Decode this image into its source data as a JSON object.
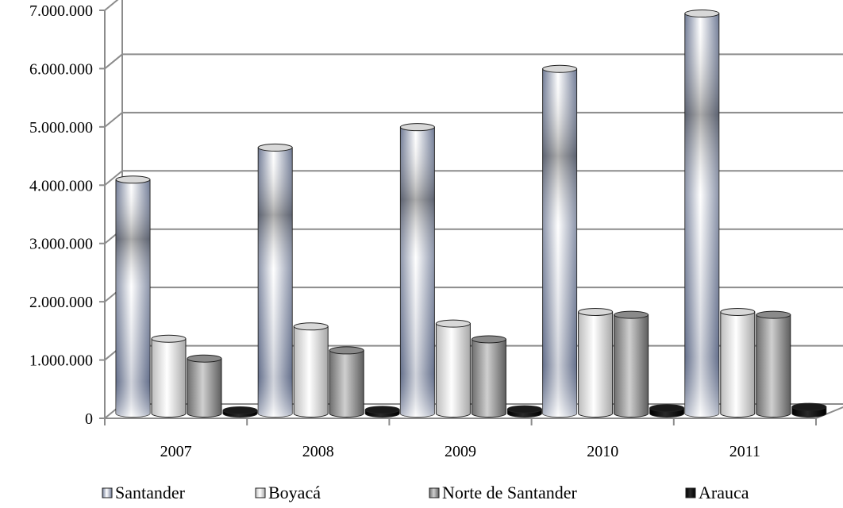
{
  "chart_data": {
    "type": "bar",
    "categories": [
      "2007",
      "2008",
      "2009",
      "2010",
      "2011"
    ],
    "series": [
      {
        "name": "Santander",
        "values": [
          4150000,
          4700000,
          5050000,
          6050000,
          7000000
        ],
        "color": "#9aa4bc"
      },
      {
        "name": "Boyacá",
        "values": [
          1420000,
          1630000,
          1680000,
          1880000,
          1880000
        ],
        "color": "#f2f2f2"
      },
      {
        "name": "Norte de Santander",
        "values": [
          1080000,
          1220000,
          1410000,
          1830000,
          1830000
        ],
        "color": "#9a9a9a"
      },
      {
        "name": "Arauca",
        "values": [
          190000,
          200000,
          210000,
          230000,
          250000
        ],
        "color": "#0a0a0a"
      }
    ],
    "y_ticks": [
      "0",
      "1.000.000",
      "2.000.000",
      "3.000.000",
      "4.000.000",
      "5.000.000",
      "6.000.000",
      "7.000.000"
    ],
    "ylim": [
      0,
      7000000
    ],
    "grid": true,
    "legend_position": "bottom",
    "style": "3d-cylinder"
  }
}
